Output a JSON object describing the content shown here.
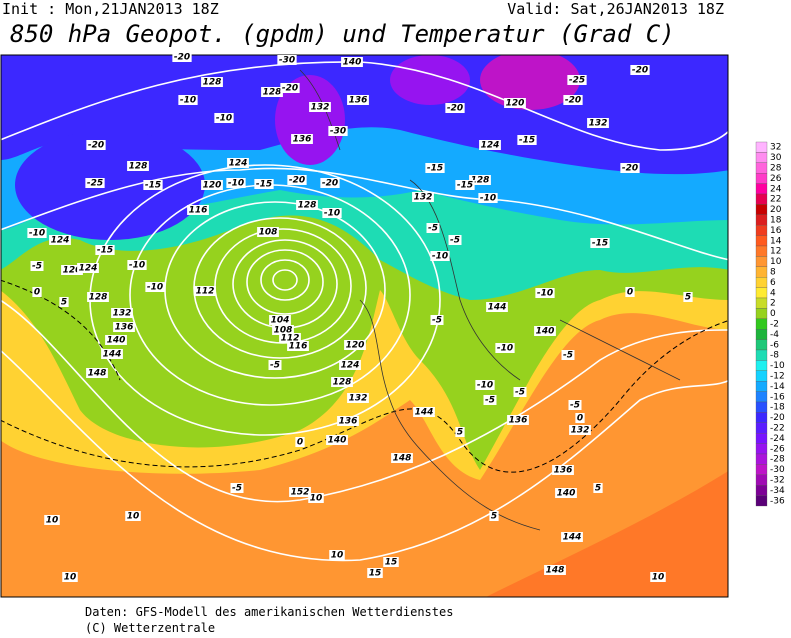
{
  "header": {
    "init": "Init : Mon,21JAN2013 18Z",
    "valid": "Valid: Sat,26JAN2013 18Z",
    "title": "850 hPa Geopot. (gpdm) und Temperatur (Grad C)"
  },
  "colorbar": {
    "values": [
      32,
      30,
      28,
      26,
      24,
      22,
      20,
      18,
      16,
      14,
      12,
      10,
      8,
      6,
      4,
      2,
      0,
      -2,
      -4,
      -6,
      -8,
      -10,
      -12,
      -14,
      -16,
      -18,
      -20,
      -22,
      -24,
      -26,
      -28,
      -30,
      -32,
      -34,
      -36
    ],
    "colors": [
      "#ffb4ff",
      "#ff8cf0",
      "#ff64dc",
      "#ff3cc8",
      "#ff00a0",
      "#e60050",
      "#c80000",
      "#dc1e1e",
      "#f03c1e",
      "#ff5a1e",
      "#ff7828",
      "#ff9632",
      "#ffb432",
      "#ffd232",
      "#ffeb32",
      "#c8dc28",
      "#96d21e",
      "#32c81e",
      "#1eb43c",
      "#1ec878",
      "#1edcb4",
      "#1ef0f0",
      "#14d2ff",
      "#14aaff",
      "#1e82ff",
      "#2850ff",
      "#3c28ff",
      "#5a1eff",
      "#7814ff",
      "#9614f0",
      "#aa14dc",
      "#be14c8",
      "#a00ab4",
      "#7d0096",
      "#5a0078"
    ]
  },
  "geopotential_labels": [
    140,
    128,
    128,
    132,
    136,
    136,
    120,
    132,
    124,
    128,
    124,
    120,
    116,
    128,
    132,
    128,
    124,
    120,
    124,
    112,
    108,
    104,
    108,
    112,
    116,
    120,
    124,
    128,
    132,
    136,
    140,
    144,
    148,
    152,
    128,
    132,
    136,
    140,
    144,
    148,
    144,
    140,
    136,
    132,
    136,
    140,
    144,
    148
  ],
  "temperature_labels": [
    -20,
    -10,
    -10,
    -20,
    -25,
    -15,
    -15,
    -20,
    -20,
    -10,
    -10,
    -30,
    -30,
    -20,
    -20,
    -25,
    -20,
    -20,
    -15,
    -20,
    -15,
    -15,
    -15,
    -10,
    -5,
    -10,
    -5,
    -10,
    -15,
    -5,
    -10,
    -10,
    0,
    5,
    -5,
    -10,
    -5,
    0,
    5,
    -10,
    -5,
    -10,
    -5,
    -5,
    -5,
    0,
    0,
    5,
    -5,
    10,
    10,
    10,
    5,
    10,
    15,
    15,
    10,
    10,
    5
  ],
  "footer": [
    "Daten: GFS-Modell des amerikanischen Wetterdienstes",
    "(C) Wetterzentrale"
  ]
}
